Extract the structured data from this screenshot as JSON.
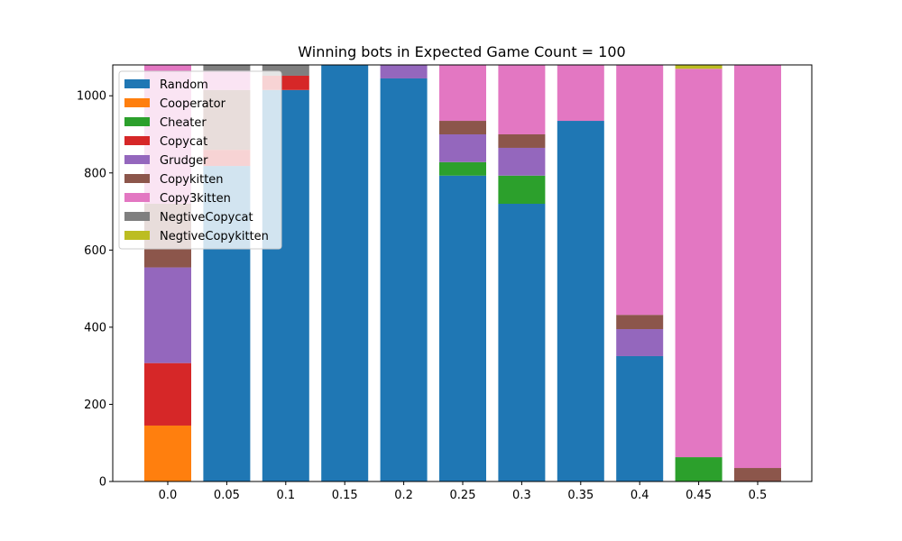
{
  "chart_data": {
    "type": "bar",
    "stacked": true,
    "title": "Winning bots in Expected Game Count = 100",
    "xlabel": "",
    "ylabel": "",
    "ylim": [
      0,
      1080
    ],
    "yticks": [
      0,
      200,
      400,
      600,
      800,
      1000
    ],
    "categories": [
      "0.0",
      "0.05",
      "0.1",
      "0.15",
      "0.2",
      "0.25",
      "0.3",
      "0.35",
      "0.4",
      "0.45",
      "0.5"
    ],
    "grid": false,
    "legend_placement": "top-left",
    "series": [
      {
        "name": "Random",
        "color": "#1f77b4",
        "values": [
          0,
          818,
          1015,
          1080,
          1045,
          793,
          720,
          935,
          325,
          0,
          0
        ]
      },
      {
        "name": "Cooperator",
        "color": "#ff7f0e",
        "values": [
          145,
          0,
          0,
          0,
          0,
          0,
          0,
          0,
          0,
          0,
          0
        ]
      },
      {
        "name": "Cheater",
        "color": "#2ca02c",
        "values": [
          0,
          0,
          0,
          0,
          0,
          35,
          73,
          0,
          0,
          63,
          0
        ]
      },
      {
        "name": "Copycat",
        "color": "#d62728",
        "values": [
          162,
          42,
          37,
          0,
          0,
          0,
          0,
          0,
          0,
          0,
          0
        ]
      },
      {
        "name": "Grudger",
        "color": "#9467bd",
        "values": [
          248,
          0,
          0,
          0,
          35,
          72,
          72,
          0,
          70,
          0,
          0
        ]
      },
      {
        "name": "Copykitten",
        "color": "#8c564b",
        "values": [
          165,
          155,
          0,
          0,
          0,
          35,
          35,
          0,
          37,
          0,
          35
        ]
      },
      {
        "name": "Copy3kitten",
        "color": "#e377c2",
        "values": [
          360,
          50,
          0,
          0,
          0,
          145,
          180,
          145,
          648,
          1007,
          1045
        ]
      },
      {
        "name": "NegtiveCopycat",
        "color": "#7f7f7f",
        "values": [
          0,
          15,
          28,
          0,
          0,
          0,
          0,
          0,
          0,
          0,
          0
        ]
      },
      {
        "name": "NegtiveCopykitten",
        "color": "#bcbd22",
        "values": [
          0,
          0,
          0,
          0,
          0,
          0,
          0,
          0,
          0,
          10,
          0
        ]
      }
    ]
  }
}
